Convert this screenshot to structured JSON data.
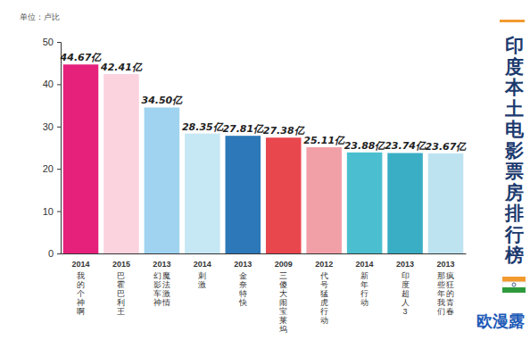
{
  "chart_data": {
    "type": "bar",
    "title": "印度本土电影票房排行榜",
    "y_label": "单位：卢比",
    "annotations": [
      "欧漫露"
    ],
    "years": [
      "2014",
      "2015",
      "2013",
      "2014",
      "2013",
      "2009",
      "2012",
      "2014",
      "2013",
      "2013"
    ],
    "categories": [
      "我的个神啊",
      "巴霍巴利王",
      "幻影车神 魔法激情",
      "刺激",
      "金奈特快",
      "三傻大闹宝莱坞",
      "代号猛虎行动",
      "新年行动",
      "印度超人3",
      "那些年我们 疯狂的青春"
    ],
    "values": [
      44.67,
      42.41,
      34.5,
      28.35,
      27.81,
      27.38,
      25.11,
      23.88,
      23.74,
      23.67
    ],
    "value_labels": [
      "44.67亿",
      "42.41亿",
      "34.50亿",
      "28.35亿",
      "27.81亿",
      "27.38亿",
      "25.11亿",
      "23.88亿",
      "23.74亿",
      "23.67亿"
    ],
    "colors": [
      "#e5217c",
      "#fbd3df",
      "#9fd3f0",
      "#c6e8f4",
      "#2c78b8",
      "#e8474e",
      "#f2a0a8",
      "#4bbfcf",
      "#3aaec4",
      "#bde3f1"
    ],
    "ylim": [
      0,
      50
    ],
    "yticks": [
      0,
      10,
      20,
      30,
      40,
      50
    ],
    "data_labels": true,
    "grid": false
  }
}
